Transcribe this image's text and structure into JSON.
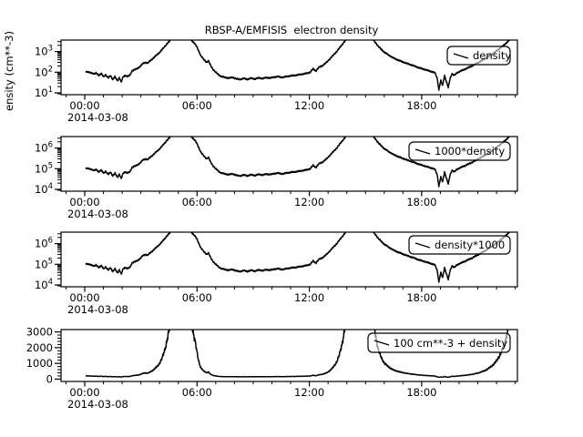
{
  "title": "RBSP-A/EMFISIS  electron density",
  "y_axis_title": "ensity (cm**-3)",
  "colors": {
    "line": "#000000",
    "frame": "#000000",
    "background": "#ffffff",
    "legend_fill": "rgba(255,255,255,0.58)"
  },
  "x_axis": {
    "major_tick_labels": [
      "00:00",
      "06:00",
      "12:00",
      "18:00"
    ],
    "major_tick_hours": [
      0,
      6,
      12,
      18
    ],
    "minor_tick_interval_hours": 1,
    "date_label": "2014-03-08",
    "range_hours": [
      -1.31,
      23.11
    ]
  },
  "chart_data": {
    "type": "line",
    "title": "RBSP-A/EMFISIS  electron density",
    "x_unit": "hours UT on 2014-03-08",
    "x_hours": [
      0.05,
      0.2,
      0.35,
      0.5,
      0.62,
      0.75,
      0.88,
      1.0,
      1.12,
      1.25,
      1.38,
      1.5,
      1.62,
      1.75,
      1.85,
      1.95,
      2.05,
      2.15,
      2.3,
      2.42,
      2.52,
      2.65,
      2.8,
      2.95,
      3.1,
      3.25,
      3.35,
      3.5,
      3.65,
      3.8,
      3.95,
      4.1,
      4.25,
      4.4,
      4.55,
      4.7,
      4.9,
      5.15,
      5.4,
      5.6,
      5.75,
      5.9,
      6.0,
      6.1,
      6.2,
      6.35,
      6.5,
      6.62,
      6.72,
      6.85,
      7.0,
      7.15,
      7.3,
      7.5,
      7.7,
      7.9,
      8.1,
      8.3,
      8.5,
      8.7,
      8.9,
      9.1,
      9.3,
      9.5,
      9.7,
      9.9,
      10.1,
      10.35,
      10.6,
      10.85,
      11.1,
      11.35,
      11.6,
      11.85,
      12.05,
      12.2,
      12.35,
      12.5,
      12.7,
      12.9,
      13.1,
      13.3,
      13.5,
      13.7,
      13.9,
      14.1,
      14.35,
      14.7,
      15.0,
      15.2,
      15.4,
      15.55,
      15.7,
      15.85,
      16.0,
      16.15,
      16.3,
      16.5,
      16.7,
      16.9,
      17.1,
      17.35,
      17.6,
      17.85,
      18.1,
      18.35,
      18.55,
      18.7,
      18.82,
      18.92,
      19.02,
      19.12,
      19.22,
      19.32,
      19.42,
      19.52,
      19.62,
      19.75,
      19.9,
      20.1,
      20.35,
      20.6,
      20.85,
      21.1,
      21.35,
      21.6,
      21.85,
      22.1,
      22.35,
      22.6,
      22.8,
      23.0,
      23.08
    ],
    "density_cm3": [
      105,
      100,
      95,
      80,
      92,
      70,
      85,
      62,
      75,
      52,
      68,
      45,
      60,
      38,
      55,
      33,
      60,
      70,
      62,
      72,
      115,
      130,
      150,
      185,
      260,
      300,
      270,
      360,
      470,
      620,
      820,
      1150,
      1650,
      2400,
      3300,
      4700,
      6200,
      6800,
      5800,
      4200,
      3200,
      2300,
      1600,
      1000,
      640,
      420,
      310,
      350,
      210,
      140,
      100,
      75,
      62,
      55,
      52,
      56,
      48,
      45,
      50,
      46,
      51,
      47,
      53,
      49,
      55,
      52,
      58,
      61,
      56,
      64,
      68,
      73,
      80,
      88,
      100,
      145,
      115,
      170,
      210,
      290,
      450,
      700,
      1100,
      1900,
      3200,
      5200,
      6800,
      7200,
      6800,
      5400,
      3800,
      2600,
      1700,
      1250,
      950,
      760,
      620,
      480,
      400,
      340,
      290,
      240,
      200,
      165,
      140,
      120,
      105,
      95,
      55,
      14,
      40,
      22,
      70,
      35,
      18,
      50,
      85,
      70,
      95,
      115,
      145,
      185,
      240,
      320,
      430,
      600,
      850,
      1250,
      1900,
      3000,
      4600,
      6500,
      7500
    ],
    "panels": [
      {
        "legend": "density",
        "yscale": "log",
        "ytick_labels": [
          "10^1",
          "10^2",
          "10^3"
        ],
        "ytick_exponents": [
          1,
          2,
          3
        ],
        "transform": {
          "multiply": 1,
          "add": 0
        }
      },
      {
        "legend": "1000*density",
        "yscale": "log",
        "ytick_labels": [
          "10^4",
          "10^5",
          "10^6"
        ],
        "ytick_exponents": [
          4,
          5,
          6
        ],
        "transform": {
          "multiply": 1000,
          "add": 0
        }
      },
      {
        "legend": "density*1000",
        "yscale": "log",
        "ytick_labels": [
          "10^4",
          "10^5",
          "10^6"
        ],
        "ytick_exponents": [
          4,
          5,
          6
        ],
        "transform": {
          "multiply": 1000,
          "add": 0
        }
      },
      {
        "legend": "100 cm**-3 + density",
        "yscale": "linear",
        "ytick_labels": [
          "0",
          "1000",
          "2000",
          "3000"
        ],
        "ytick_values": [
          0,
          1000,
          2000,
          3000
        ],
        "ylim": [
          -150,
          3150
        ],
        "minor_tick_step": 200,
        "transform": {
          "multiply": 1,
          "add": 100
        }
      }
    ]
  }
}
